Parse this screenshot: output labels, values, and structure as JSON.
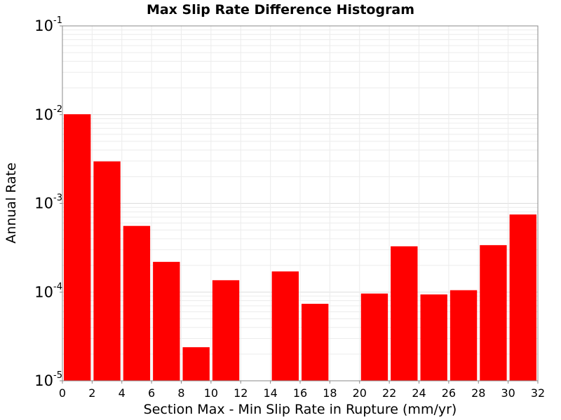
{
  "chart_data": {
    "type": "bar",
    "title": "Max Slip Rate Difference Histogram",
    "xlabel": "Section Max - Min Slip Rate in Rupture (mm/yr)",
    "ylabel": "Annual Rate",
    "y_scale": "log",
    "xlim": [
      0,
      32
    ],
    "ylim": [
      1e-05,
      0.1
    ],
    "bar_width": 2,
    "x_ticks": [
      "0",
      "2",
      "4",
      "6",
      "8",
      "10",
      "12",
      "14",
      "16",
      "18",
      "20",
      "22",
      "24",
      "26",
      "28",
      "30",
      "32"
    ],
    "y_ticks": [
      {
        "base": "10",
        "exp": "-5"
      },
      {
        "base": "10",
        "exp": "-4"
      },
      {
        "base": "10",
        "exp": "-3"
      },
      {
        "base": "10",
        "exp": "-2"
      },
      {
        "base": "10",
        "exp": "-1"
      }
    ],
    "bars": [
      {
        "x": 1,
        "value": 0.0101
      },
      {
        "x": 3,
        "value": 0.00297
      },
      {
        "x": 5,
        "value": 0.000557
      },
      {
        "x": 7,
        "value": 0.000219
      },
      {
        "x": 9,
        "value": 2.39e-05
      },
      {
        "x": 11,
        "value": 0.000136
      },
      {
        "x": 13,
        "value": 0
      },
      {
        "x": 15,
        "value": 0.000171
      },
      {
        "x": 17,
        "value": 7.38e-05
      },
      {
        "x": 19,
        "value": 0
      },
      {
        "x": 21,
        "value": 9.62e-05
      },
      {
        "x": 23,
        "value": 0.000328
      },
      {
        "x": 25,
        "value": 9.41e-05
      },
      {
        "x": 27,
        "value": 0.000105
      },
      {
        "x": 29,
        "value": 0.000338
      },
      {
        "x": 31,
        "value": 0.000749
      }
    ],
    "bar_color": "#ff0000",
    "grid": true
  }
}
